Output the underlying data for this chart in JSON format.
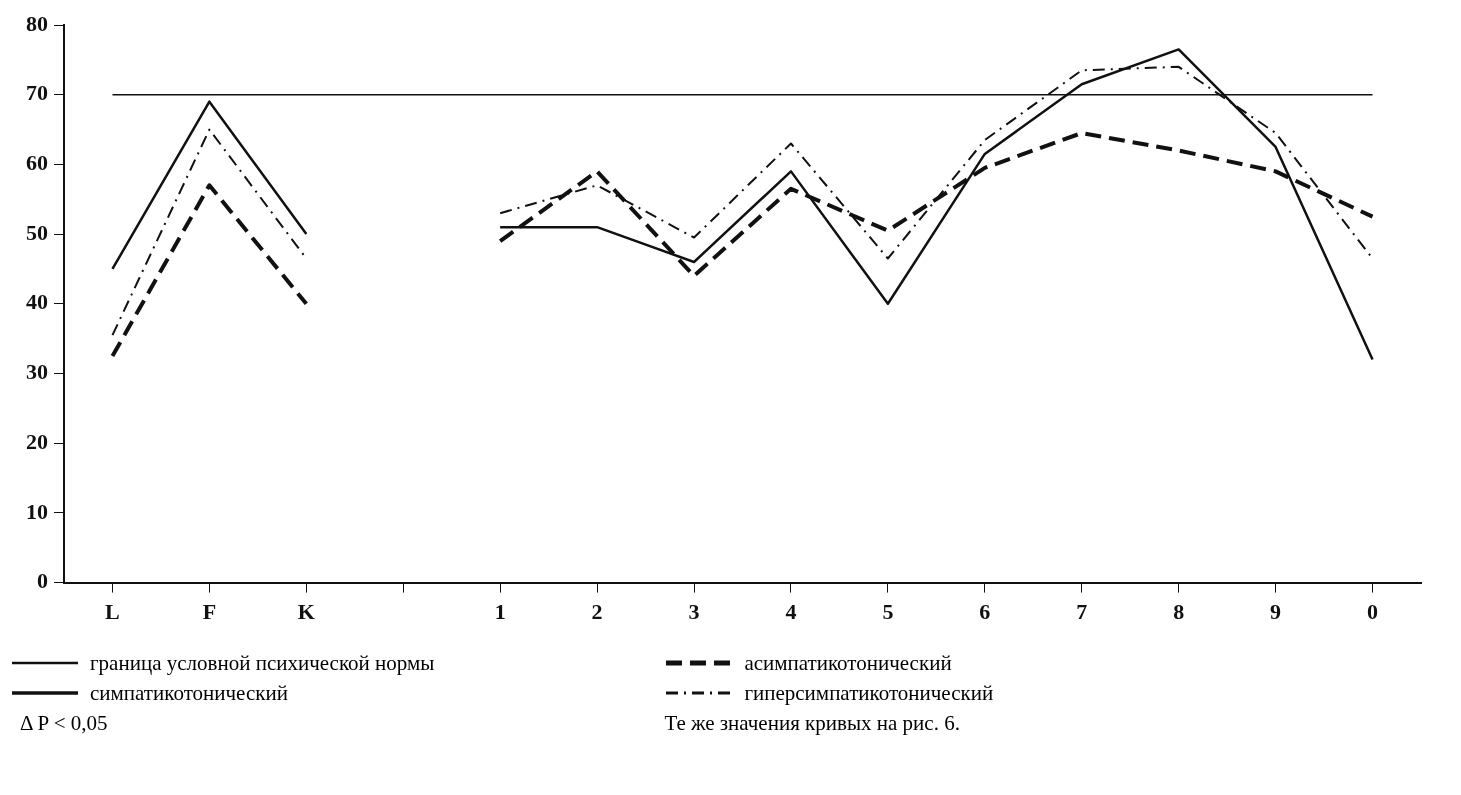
{
  "chart_data": {
    "type": "line",
    "categories": [
      "L",
      "F",
      "K",
      null,
      "1",
      "2",
      "3",
      "4",
      "5",
      "6",
      "7",
      "8",
      "9",
      "0"
    ],
    "series": [
      {
        "name": "граница условной психической нормы",
        "color": "#111111",
        "line_style": "solid",
        "values": [
          70,
          70,
          70,
          70,
          70,
          70,
          70,
          70,
          70,
          70,
          70,
          70,
          70,
          70
        ]
      },
      {
        "name": "симпатикотонический",
        "color": "#111111",
        "line_style": "solid",
        "values": [
          45,
          69,
          50,
          null,
          51,
          51,
          46,
          59,
          40,
          61.5,
          71.5,
          76.5,
          62.5,
          32
        ]
      },
      {
        "name": "асимпатикотонический",
        "color": "#111111",
        "line_style": "dashed",
        "values": [
          32.5,
          57,
          40,
          null,
          49,
          59,
          44,
          56.5,
          50.5,
          59.5,
          64.5,
          62,
          59,
          52.5
        ]
      },
      {
        "name": "гиперсимпатикотонический",
        "color": "#111111",
        "line_style": "dashdot",
        "values": [
          35.5,
          65,
          46.5,
          null,
          53,
          57,
          49.5,
          63,
          46.5,
          63.5,
          73.5,
          74,
          64.5,
          46.5
        ]
      }
    ],
    "ylim": [
      0,
      80
    ],
    "yticks": [
      0,
      10,
      20,
      30,
      40,
      50,
      60,
      70,
      80
    ],
    "grid": false,
    "legend": "bottom",
    "marker": "none",
    "annotations": [
      "Δ P < 0,05",
      "Те же значения  кривых на рис. 6."
    ]
  }
}
